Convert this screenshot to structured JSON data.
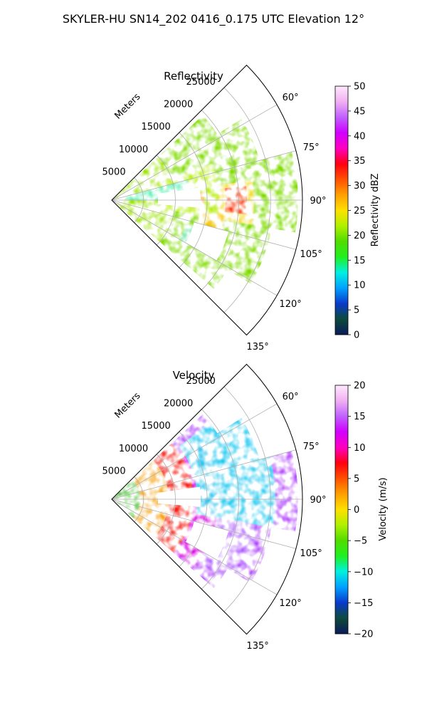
{
  "figure": {
    "suptitle": "SKYLER-HU  SN14_202  0416_0.175 UTC Elevation 12°"
  },
  "chart_data": [
    {
      "type": "polar-sector-image",
      "title": "Reflectivity",
      "theta_ticks": [
        "60°",
        "75°",
        "90°",
        "105°",
        "120°",
        "135°"
      ],
      "theta_values_deg": [
        60,
        75,
        90,
        105,
        120,
        135
      ],
      "theta_range_deg": [
        45,
        135
      ],
      "r_label": "Meters",
      "r_ticks": [
        "5000",
        "10000",
        "15000",
        "20000",
        "25000"
      ],
      "r_values": [
        5000,
        10000,
        15000,
        20000,
        25000
      ],
      "r_max": 30000,
      "colorbar": {
        "label": "Reflectivity dBZ",
        "range": [
          0,
          50
        ],
        "ticks": [
          "0",
          "5",
          "10",
          "15",
          "20",
          "25",
          "30",
          "35",
          "40",
          "45",
          "50"
        ],
        "tick_values": [
          0,
          5,
          10,
          15,
          20,
          25,
          30,
          35,
          40,
          45,
          50
        ]
      }
    },
    {
      "type": "polar-sector-image",
      "title": "Velocity",
      "theta_ticks": [
        "60°",
        "75°",
        "90°",
        "105°",
        "120°",
        "135°"
      ],
      "theta_values_deg": [
        60,
        75,
        90,
        105,
        120,
        135
      ],
      "theta_range_deg": [
        45,
        135
      ],
      "r_label": "Meters",
      "r_ticks": [
        "5000",
        "10000",
        "15000",
        "20000",
        "25000"
      ],
      "r_values": [
        5000,
        10000,
        15000,
        20000,
        25000
      ],
      "r_max": 30000,
      "colorbar": {
        "label": "Velocity (m/s)",
        "range": [
          -20,
          20
        ],
        "ticks": [
          "−20",
          "−15",
          "−10",
          "−5",
          "0",
          "5",
          "10",
          "15",
          "20"
        ],
        "tick_values": [
          -20,
          -15,
          -10,
          -5,
          0,
          5,
          10,
          15,
          20
        ]
      }
    }
  ],
  "colormap_stops": [
    "#0a1a5a",
    "#0d4a3a",
    "#0a3acc",
    "#00a0ff",
    "#00f0e0",
    "#20f020",
    "#50dc00",
    "#b0f000",
    "#ffe000",
    "#ffa000",
    "#ff5000",
    "#ff0010",
    "#ff00c0",
    "#d000ff",
    "#c060ff",
    "#f0b0f0",
    "#ffe8ff"
  ],
  "colors": {
    "gridline": "#b0b0b0",
    "axis": "#000000"
  }
}
